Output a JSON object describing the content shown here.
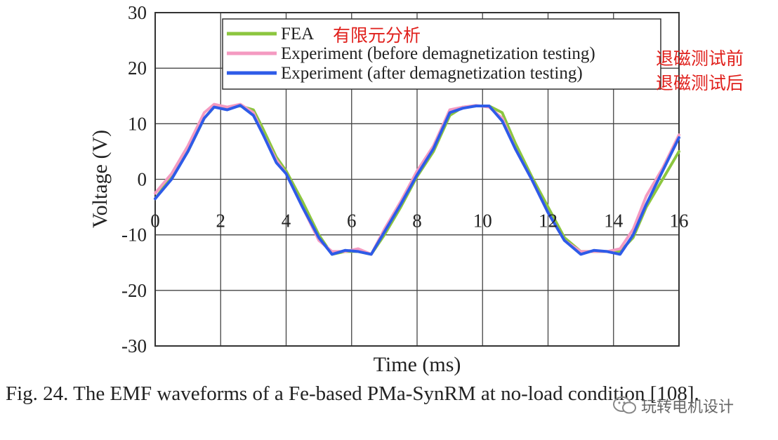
{
  "chart_data": {
    "type": "line",
    "xlabel": "Time (ms)",
    "ylabel": "Voltage (V)",
    "xlim": [
      0,
      16
    ],
    "ylim": [
      -30,
      30
    ],
    "xticks": [
      "0",
      "2",
      "4",
      "6",
      "8",
      "10",
      "12",
      "14",
      "16"
    ],
    "yticks": [
      "30",
      "20",
      "10",
      "0",
      "-10",
      "-20",
      "-30"
    ],
    "grid": true,
    "legend_position": "top",
    "series": [
      {
        "name": "FEA",
        "color": "#8cc63f",
        "x": [
          0,
          0.5,
          1.0,
          1.5,
          1.8,
          2.2,
          2.6,
          3.0,
          3.3,
          3.7,
          4.0,
          4.5,
          5.0,
          5.4,
          5.8,
          6.2,
          6.6,
          7.0,
          7.5,
          8.0,
          8.5,
          9.0,
          9.4,
          9.8,
          10.2,
          10.6,
          11.0,
          11.5,
          12.0,
          12.5,
          13.0,
          13.4,
          13.8,
          14.2,
          14.6,
          15.0,
          15.5,
          16.0
        ],
        "y": [
          -3.5,
          0.5,
          5,
          11,
          13,
          13,
          13.2,
          12.5,
          9,
          4,
          1.5,
          -4,
          -10,
          -13.5,
          -13,
          -13,
          -13.5,
          -10,
          -5,
          0.5,
          5,
          11.5,
          13,
          13.2,
          13.2,
          12,
          6.5,
          0.5,
          -5,
          -10.5,
          -13,
          -13,
          -13,
          -13,
          -10.5,
          -5,
          0,
          5
        ]
      },
      {
        "name": "Experiment (before demagnetization testing)",
        "color": "#f49ac1",
        "x": [
          0,
          0.5,
          1.0,
          1.5,
          1.8,
          2.2,
          2.6,
          3.0,
          3.3,
          3.7,
          4.0,
          4.5,
          5.0,
          5.4,
          5.8,
          6.2,
          6.6,
          7.0,
          7.5,
          8.0,
          8.5,
          9.0,
          9.4,
          9.8,
          10.2,
          10.6,
          11.0,
          11.5,
          12.0,
          12.5,
          13.0,
          13.4,
          13.8,
          14.2,
          14.6,
          15.0,
          15.5,
          16.0
        ],
        "y": [
          -2.5,
          1,
          6,
          12,
          13.5,
          13,
          13.5,
          12,
          8,
          3.5,
          1,
          -5,
          -11,
          -13,
          -13,
          -12.5,
          -13.5,
          -9,
          -4,
          1.5,
          6,
          12.5,
          13,
          13.3,
          13,
          11,
          5.5,
          0,
          -6,
          -11,
          -13,
          -13,
          -13,
          -12.5,
          -9,
          -3,
          2,
          8
        ]
      },
      {
        "name": "Experiment (after demagnetization testing)",
        "color": "#2e5be8",
        "x": [
          0,
          0.5,
          1.0,
          1.5,
          1.8,
          2.2,
          2.6,
          3.0,
          3.3,
          3.7,
          4.0,
          4.5,
          5.0,
          5.4,
          5.8,
          6.2,
          6.6,
          7.0,
          7.5,
          8.0,
          8.5,
          9.0,
          9.4,
          9.8,
          10.2,
          10.6,
          11.0,
          11.5,
          12.0,
          12.5,
          13.0,
          13.4,
          13.8,
          14.2,
          14.6,
          15.0,
          15.5,
          16.0
        ],
        "y": [
          -3.5,
          0,
          5,
          11,
          13,
          12.5,
          13.3,
          11.5,
          8,
          3,
          1,
          -5,
          -10.5,
          -13.5,
          -12.8,
          -13,
          -13.5,
          -9.5,
          -4.5,
          0.8,
          5.5,
          12,
          12.8,
          13.2,
          13.2,
          10.5,
          5.5,
          0,
          -6,
          -11,
          -13.5,
          -12.8,
          -13,
          -13.5,
          -10,
          -4.5,
          1.5,
          7.5
        ]
      }
    ],
    "annotations": [
      "有限元分析",
      "退磁测试前",
      "退磁测试后"
    ]
  },
  "caption": "Fig. 24.  The EMF waveforms of a Fe-based PMa-SynRM at no-load condition [108].",
  "watermark": "玩转电机设计",
  "icons": {
    "watermark": "wechat-icon"
  }
}
